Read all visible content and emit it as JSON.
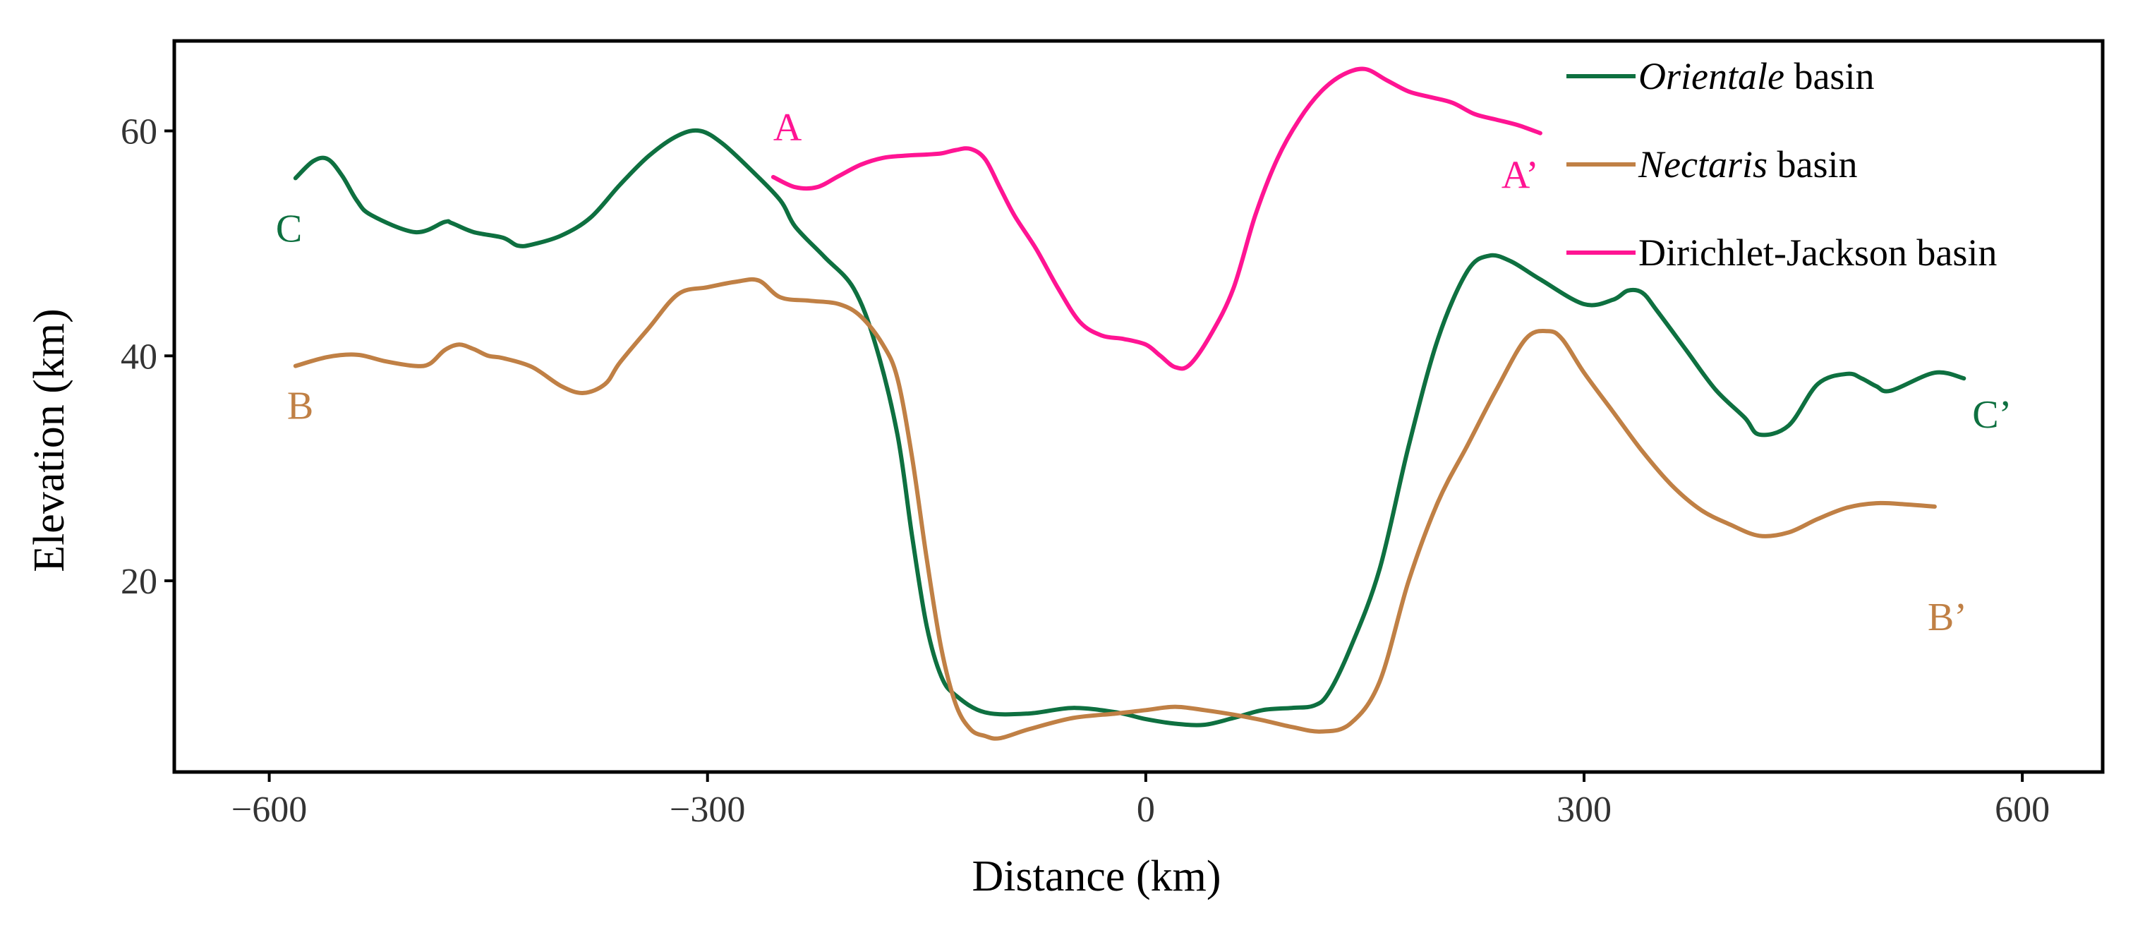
{
  "chart_data": {
    "type": "line",
    "title": "",
    "xlabel": "Distance (km)",
    "ylabel": "Elevation (km)",
    "xlim": [
      -665,
      655
    ],
    "ylim": [
      3,
      68
    ],
    "xticks": [
      {
        "value": -600,
        "label": "−600"
      },
      {
        "value": -300,
        "label": "−300"
      },
      {
        "value": 0,
        "label": "0"
      },
      {
        "value": 300,
        "label": "300"
      },
      {
        "value": 600,
        "label": "600"
      }
    ],
    "yticks": [
      {
        "value": 20,
        "label": "20"
      },
      {
        "value": 40,
        "label": "40"
      },
      {
        "value": 60,
        "label": "60"
      }
    ],
    "grid": false,
    "legend_position": "top-right",
    "series": [
      {
        "key": "orientale",
        "name_italic": "Orientale",
        "name_rest": " basin",
        "color": "#0e7040",
        "start_label": "C",
        "end_label": "C’",
        "x": [
          -582,
          -570,
          -560,
          -550,
          -540,
          -530,
          -500,
          -480,
          -475,
          -460,
          -440,
          -430,
          -420,
          -400,
          -380,
          -360,
          -340,
          -320,
          -305,
          -290,
          -270,
          -250,
          -240,
          -220,
          -200,
          -185,
          -170,
          -160,
          -150,
          -140,
          -130,
          -110,
          -80,
          -50,
          -20,
          0,
          20,
          40,
          60,
          80,
          100,
          115,
          125,
          140,
          160,
          180,
          200,
          220,
          235,
          250,
          270,
          300,
          320,
          330,
          340,
          350,
          370,
          390,
          410,
          420,
          440,
          460,
          480,
          490,
          500,
          510,
          540,
          560
        ],
        "y": [
          55.8,
          57.3,
          57.5,
          56.0,
          53.8,
          52.5,
          51.0,
          51.9,
          51.8,
          51.0,
          50.5,
          49.8,
          49.9,
          50.7,
          52.3,
          55.2,
          57.8,
          59.6,
          60.0,
          58.9,
          56.5,
          53.8,
          51.5,
          48.8,
          46.0,
          41.0,
          33.0,
          24.0,
          16.0,
          11.5,
          9.8,
          8.3,
          8.2,
          8.7,
          8.3,
          7.7,
          7.3,
          7.2,
          7.8,
          8.5,
          8.7,
          8.9,
          10.0,
          14.0,
          21.0,
          32.0,
          41.5,
          47.5,
          48.9,
          48.4,
          46.8,
          44.6,
          45.0,
          45.8,
          45.6,
          44.0,
          40.5,
          37.0,
          34.5,
          33.0,
          33.8,
          37.5,
          38.4,
          38.0,
          37.3,
          36.9,
          38.5,
          38.0
        ]
      },
      {
        "key": "nectaris",
        "name_italic": "Nectaris",
        "name_rest": " basin",
        "color": "#c08045",
        "start_label": "B",
        "end_label": "B’",
        "x": [
          -582,
          -560,
          -540,
          -520,
          -500,
          -490,
          -480,
          -470,
          -460,
          -450,
          -440,
          -420,
          -400,
          -385,
          -370,
          -360,
          -340,
          -320,
          -300,
          -280,
          -265,
          -250,
          -230,
          -210,
          -195,
          -180,
          -170,
          -160,
          -150,
          -140,
          -130,
          -120,
          -110,
          -100,
          -80,
          -50,
          -20,
          0,
          20,
          40,
          60,
          80,
          100,
          120,
          140,
          160,
          180,
          200,
          220,
          240,
          260,
          275,
          285,
          300,
          320,
          340,
          360,
          380,
          400,
          420,
          440,
          460,
          480,
          500,
          520,
          540
        ],
        "y": [
          39.1,
          39.9,
          40.1,
          39.5,
          39.1,
          39.3,
          40.5,
          41.0,
          40.6,
          40.0,
          39.8,
          39.0,
          37.3,
          36.7,
          37.5,
          39.4,
          42.5,
          45.5,
          46.1,
          46.6,
          46.7,
          45.2,
          44.9,
          44.6,
          43.5,
          41.0,
          38.0,
          31.0,
          22.0,
          14.0,
          9.0,
          6.8,
          6.2,
          6.0,
          6.8,
          7.8,
          8.2,
          8.5,
          8.8,
          8.5,
          8.1,
          7.6,
          7.0,
          6.6,
          7.3,
          11.0,
          20.0,
          27.0,
          32.0,
          37.0,
          41.5,
          42.2,
          41.5,
          38.5,
          35.0,
          31.5,
          28.5,
          26.3,
          25.0,
          24.0,
          24.3,
          25.5,
          26.5,
          26.9,
          26.8,
          26.6
        ]
      },
      {
        "key": "dirichlet",
        "name_italic": "",
        "name_rest": "Dirichlet-Jackson basin",
        "color": "#ff1493",
        "start_label": "A",
        "end_label": "A’",
        "x": [
          -255,
          -240,
          -225,
          -210,
          -195,
          -180,
          -165,
          -150,
          -140,
          -130,
          -120,
          -110,
          -100,
          -90,
          -75,
          -60,
          -45,
          -30,
          -15,
          0,
          10,
          20,
          30,
          45,
          60,
          75,
          90,
          105,
          120,
          135,
          150,
          165,
          180,
          195,
          210,
          225,
          240,
          255,
          270
        ],
        "y": [
          55.9,
          55.0,
          55.0,
          56.0,
          57.0,
          57.6,
          57.8,
          57.9,
          58.0,
          58.3,
          58.4,
          57.5,
          55.0,
          52.5,
          49.5,
          46.0,
          43.0,
          41.8,
          41.5,
          41.0,
          40.0,
          39.0,
          39.2,
          42.0,
          46.0,
          52.5,
          57.5,
          61.0,
          63.5,
          65.0,
          65.5,
          64.5,
          63.5,
          63.0,
          62.5,
          61.5,
          61.0,
          60.5,
          59.8
        ]
      }
    ]
  }
}
